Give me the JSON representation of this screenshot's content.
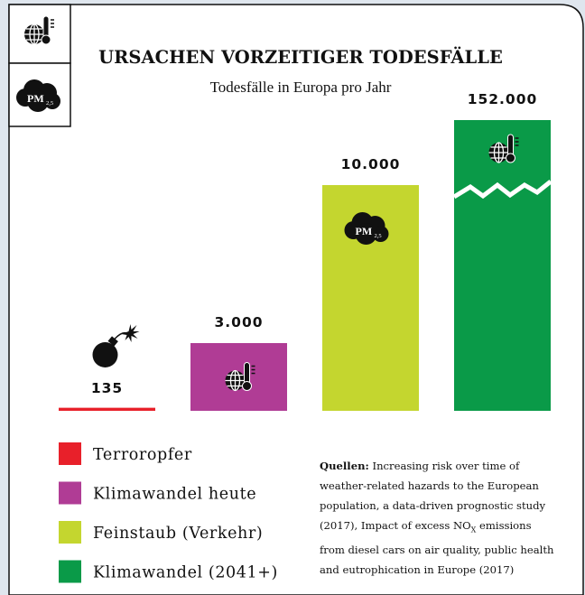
{
  "chart_data": {
    "type": "bar",
    "title": "URSACHEN VORZEITIGER TODESFÄLLE",
    "subtitle": "Todesfälle in Europa pro Jahr",
    "categories": [
      "Terroropfer",
      "Klimawandel heute",
      "Feinstaub (Verkehr)",
      "Klimawandel (2041+)"
    ],
    "values": [
      135,
      3000,
      10000,
      152000
    ],
    "value_labels": [
      "135",
      "3.000",
      "10.000",
      "152.000"
    ],
    "colors": [
      "#e8202a",
      "#b03c95",
      "#c4d62f",
      "#0a9a48"
    ],
    "icon_text": {
      "pm": "PM",
      "pm_sub": "2,5"
    },
    "sources": {
      "label": "Quellen:",
      "text": "Increasing risk over time of weather-related hazards to the European population, a data-driven prognostic study (2017), Impact of excess NO",
      "sub": "X",
      "text_after": " emissions from diesel cars on air quality, public health and eutrophication in Europe (2017)"
    }
  }
}
